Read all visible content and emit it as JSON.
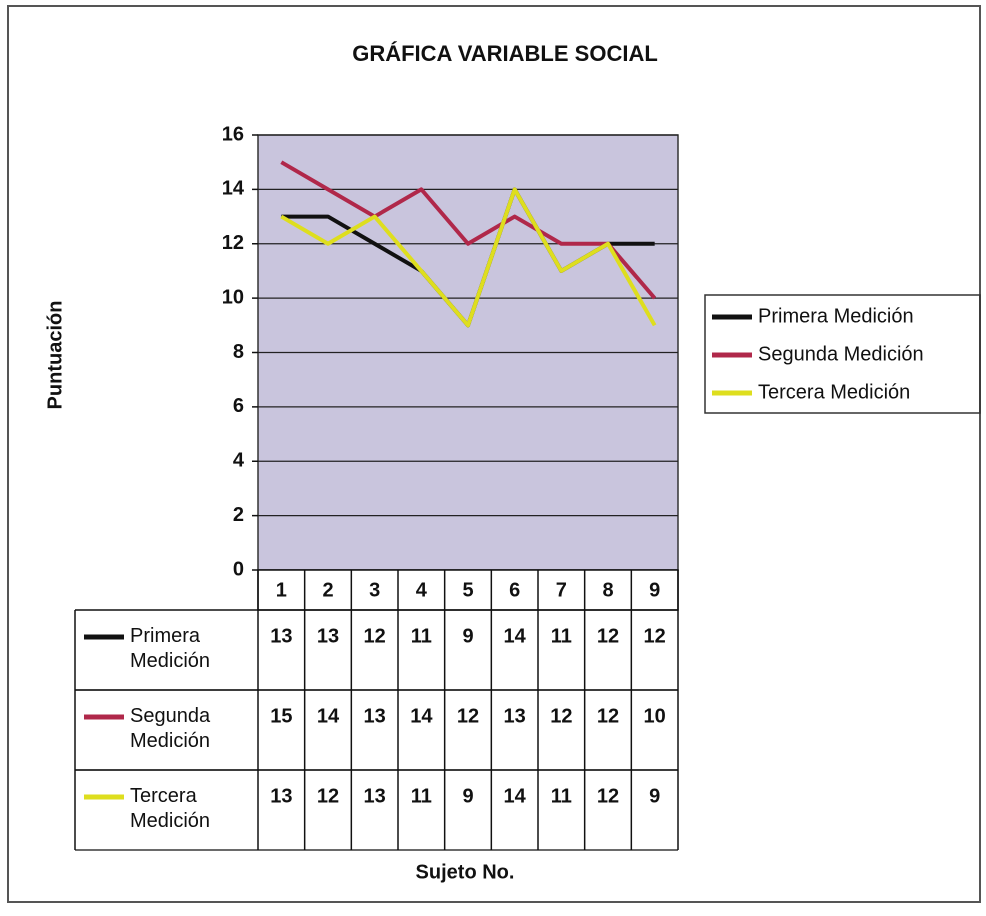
{
  "chart_data": {
    "type": "line",
    "title": "GRÁFICA VARIABLE SOCIAL",
    "x_label": "Sujeto No.",
    "y_label": "Puntuación",
    "categories": [
      "1",
      "2",
      "3",
      "4",
      "5",
      "6",
      "7",
      "8",
      "9"
    ],
    "series": [
      {
        "name": "Primera Medición",
        "color": "#111111",
        "values": [
          13,
          13,
          12,
          11,
          9,
          14,
          11,
          12,
          12
        ]
      },
      {
        "name": "Segunda Medición",
        "color": "#b0284a",
        "values": [
          15,
          14,
          13,
          14,
          12,
          13,
          12,
          12,
          10
        ]
      },
      {
        "name": "Tercera Medición",
        "color": "#dede1e",
        "values": [
          13,
          12,
          13,
          11,
          9,
          14,
          11,
          12,
          9
        ]
      }
    ],
    "ylim": [
      0,
      16
    ],
    "yticks": [
      0,
      2,
      4,
      6,
      8,
      10,
      12,
      14,
      16
    ],
    "grid": true,
    "legend": "right",
    "data_table": true
  }
}
